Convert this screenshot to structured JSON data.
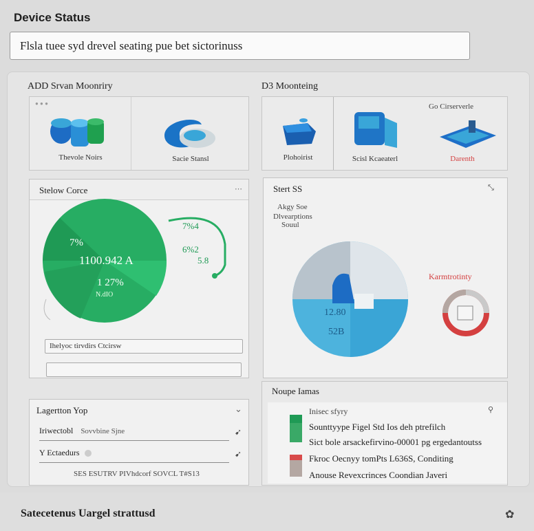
{
  "app": {
    "title": "Device Status"
  },
  "search": {
    "value": "Flsla tuee syd drevel seating pue bet sictorinuss"
  },
  "left_section": {
    "label": "ADD Srvan Moonriry",
    "tiles": [
      {
        "caption": "Thevole Noirs"
      },
      {
        "caption": "Sacie Stansl"
      }
    ],
    "card": {
      "title": "Stelow Corce",
      "menu_icon": "more-icon",
      "pie": {
        "label_pct": "7%",
        "value_main": "1100.942 A",
        "value_sub": "1 27%",
        "value_unit": "N.dIO",
        "label_r1": "7%4",
        "label_r2": "6%2",
        "label_r3": "5.8"
      },
      "field_1": "Ihelyoc tirvdirs Ctcirsw",
      "field_2": ""
    },
    "bottom": {
      "title": "Lagertton Yop",
      "rows": [
        {
          "label": "Iriwectobl",
          "value": "Sovvbine Sjne",
          "icon": "arrow-icon"
        },
        {
          "label": "Y Ectaedurs",
          "value": "",
          "icon": "arrow-icon"
        }
      ],
      "footer_text": "SES ESUTRV PIVhdcorf SOVCL T#S13"
    }
  },
  "right_section": {
    "label": "D3 Moonteing",
    "tiles": [
      {
        "caption": "Plohoirist"
      },
      {
        "caption": "Scisl Kcaeaterl"
      },
      {
        "caption": "Darenth"
      }
    ],
    "tile_header": "Go Cirserverle",
    "card": {
      "title": "Stert SS",
      "legend": [
        "Akgy Soe",
        "Dlvearptions",
        "Souul"
      ],
      "donut_value_1": "12.80",
      "donut_value_2": "52B",
      "callout": "Karmtrotinty"
    },
    "list": {
      "title": "Noupe Iamas",
      "header": "Inisec sfyry",
      "items": [
        {
          "text": "Sounttyype Figel Std Ios deh ptrefilch",
          "color": "#1f9a55"
        },
        {
          "text": "Sict bole arsackefirvino-00001 pg ergedantoutss",
          "color": "#3aa967"
        },
        {
          "text": "Fkroc Oecnyy tomPts L636S, Conditing",
          "color": "#d84a4a"
        },
        {
          "text": "Anouse Revexcrinces Coondian Javeri",
          "color": "#b4a7a2"
        }
      ]
    }
  },
  "footer": {
    "text": "Satecetenus Uargel strattusd",
    "icon": "settings-icon"
  },
  "colors": {
    "green": "#27ad63",
    "blue": "#39a6d8",
    "red": "#d44040",
    "panel": "#e5e5e5"
  }
}
